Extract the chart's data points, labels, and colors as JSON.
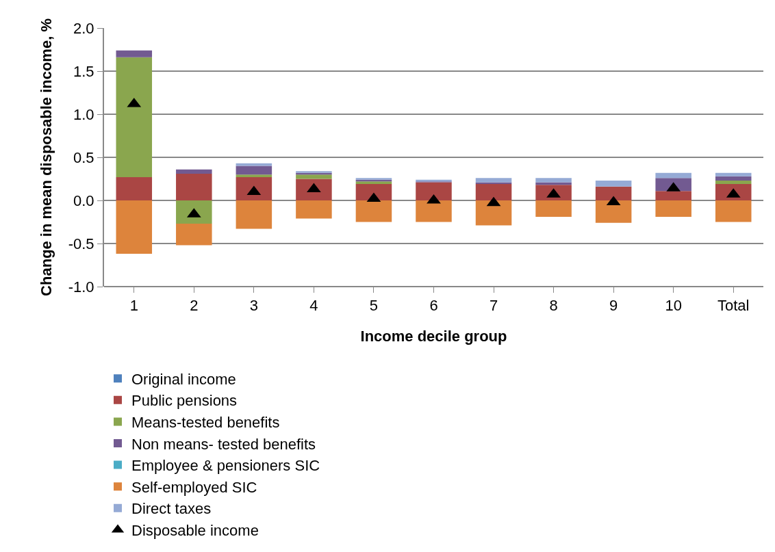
{
  "chart_data": {
    "type": "bar",
    "stacked": true,
    "xlabel": "Income decile group",
    "ylabel": "Change in mean disposable income, %",
    "categories": [
      "1",
      "2",
      "3",
      "4",
      "5",
      "6",
      "7",
      "8",
      "9",
      "10",
      "Total"
    ],
    "ylim": [
      -1.0,
      2.0
    ],
    "yticks": [
      {
        "value": -1.0,
        "label": "-1.0"
      },
      {
        "value": -0.5,
        "label": "-0.5"
      },
      {
        "value": 0,
        "label": "0.0"
      },
      {
        "value": 0.5,
        "label": "0.5"
      },
      {
        "value": 1.0,
        "label": "1.0"
      },
      {
        "value": 1.5,
        "label": "1.5"
      },
      {
        "value": 2.0,
        "label": "2.0"
      }
    ],
    "grid": "y",
    "legend": "bottom",
    "marker": "triangle",
    "series": [
      {
        "name": "Original income",
        "color": "#4f81bd",
        "values": [
          0,
          0,
          0,
          0,
          0,
          0,
          0,
          0,
          0,
          0,
          0
        ]
      },
      {
        "name": "Public pensions",
        "color": "#aa4644",
        "values": [
          0.27,
          0.31,
          0.27,
          0.25,
          0.19,
          0.21,
          0.19,
          0.18,
          0.16,
          0.11,
          0.19
        ]
      },
      {
        "name": "Means-tested benefits",
        "color": "#8aa64e",
        "values": [
          1.39,
          -0.27,
          0.03,
          0.05,
          0.03,
          0,
          0,
          0,
          0,
          0,
          0.04
        ]
      },
      {
        "name": "Non means- tested benefits",
        "color": "#725a91",
        "values": [
          0.08,
          0.05,
          0.1,
          0.02,
          0.02,
          0.01,
          0.02,
          0.03,
          0,
          0.15,
          0.05
        ]
      },
      {
        "name": "Employee & pensioners SIC",
        "color": "#4bacc6",
        "values": [
          0,
          0,
          0,
          0,
          0,
          0,
          0,
          0,
          0,
          0,
          0
        ]
      },
      {
        "name": "Self-employed SIC",
        "color": "#dd843c",
        "values": [
          -0.62,
          -0.25,
          -0.33,
          -0.21,
          -0.25,
          -0.25,
          -0.29,
          -0.19,
          -0.26,
          -0.19,
          -0.25
        ]
      },
      {
        "name": "Direct taxes",
        "color": "#95aad5",
        "values": [
          0,
          0,
          0.03,
          0.02,
          0.02,
          0.02,
          0.05,
          0.05,
          0.07,
          0.06,
          0.04
        ]
      },
      {
        "name": "Disposable income",
        "type": "scatter",
        "color": "#000000",
        "values": [
          1.12,
          -0.16,
          0.1,
          0.13,
          0.02,
          0.0,
          -0.03,
          0.07,
          -0.02,
          0.14,
          0.07
        ]
      }
    ]
  }
}
